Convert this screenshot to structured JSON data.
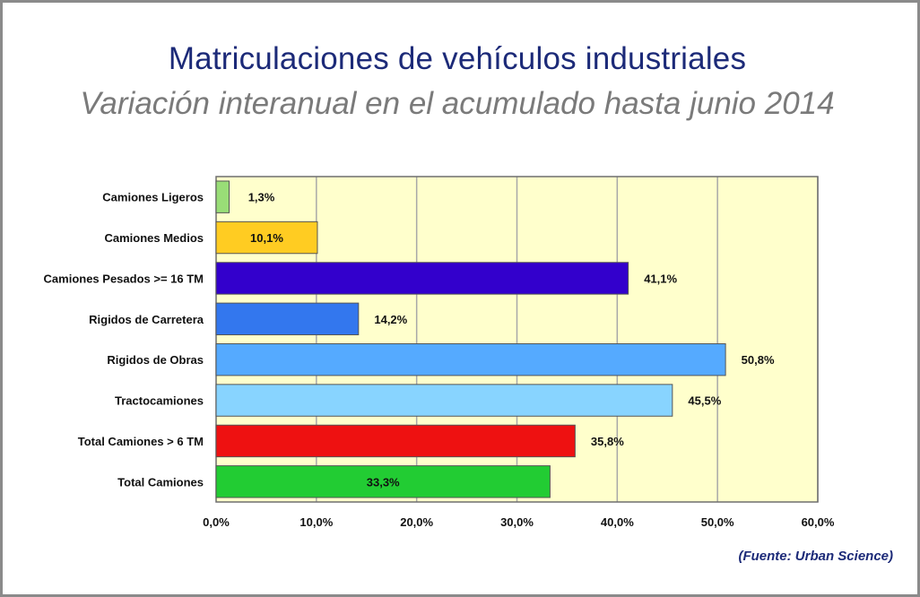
{
  "colors": {
    "plot_background": "#ffffcc",
    "grid": "#a8a8a8",
    "title": "#1c2a78",
    "subtitle": "#7a7a7a"
  },
  "chart_data": {
    "type": "bar",
    "orientation": "horizontal",
    "title": "Matriculaciones de vehículos industriales",
    "subtitle": "Variación interanual en el acumulado hasta junio 2014",
    "source": "(Fuente: Urban Science)",
    "categories": [
      "Camiones Ligeros",
      "Camiones Medios",
      "Camiones Pesados >= 16 TM",
      "Rigidos de Carretera",
      "Rigidos de Obras",
      "Tractocamiones",
      "Total Camiones  > 6 TM",
      "Total Camiones"
    ],
    "values": [
      1.3,
      10.1,
      41.1,
      14.2,
      50.8,
      45.5,
      35.8,
      33.3
    ],
    "value_labels": [
      "1,3%",
      "10,1%",
      "41,1%",
      "14,2%",
      "50,8%",
      "45,5%",
      "35,8%",
      "33,3%"
    ],
    "bar_colors": [
      "#99dd77",
      "#ffcc22",
      "#3300cc",
      "#3377ee",
      "#55aaff",
      "#88d4ff",
      "#ee1111",
      "#22cc33"
    ],
    "label_position": [
      "outside",
      "inside",
      "outside",
      "outside",
      "outside",
      "outside",
      "outside",
      "inside"
    ],
    "xlim": [
      0,
      60
    ],
    "xticks": [
      0,
      10,
      20,
      30,
      40,
      50,
      60
    ],
    "xtick_labels": [
      "0,0%",
      "10,0%",
      "20,0%",
      "30,0%",
      "40,0%",
      "50,0%",
      "60,0%"
    ],
    "grid": true,
    "xlabel": "",
    "ylabel": ""
  }
}
